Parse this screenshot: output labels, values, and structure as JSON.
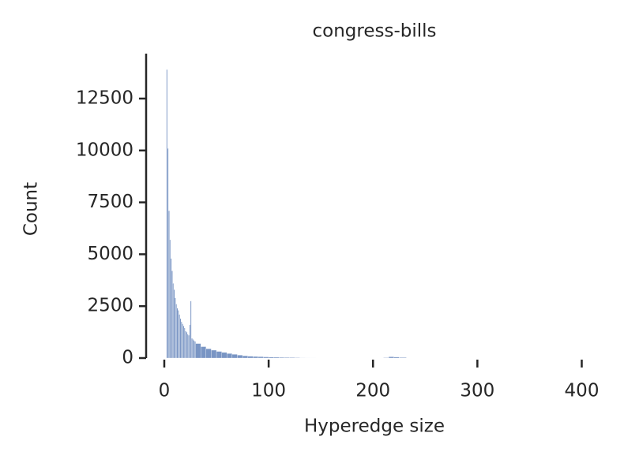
{
  "chart_data": {
    "type": "histogram",
    "title": "congress-bills",
    "x_label": "Hyperedge size",
    "y_label": "Count",
    "color": "#4c72b0",
    "bins": [
      2,
      3,
      4,
      5,
      6,
      7,
      8,
      9,
      10,
      11,
      12,
      13,
      14,
      15,
      16,
      17,
      18,
      19,
      20,
      21,
      22,
      23,
      24,
      25,
      26,
      27,
      28,
      29,
      30,
      35,
      40,
      45,
      50,
      55,
      60,
      65,
      70,
      75,
      80,
      85,
      90,
      95,
      100,
      105,
      110,
      115,
      120,
      125,
      130,
      135,
      140,
      145,
      210,
      215,
      220,
      225,
      232
    ],
    "counts": [
      13900,
      10100,
      7100,
      5700,
      4800,
      4200,
      3600,
      3300,
      2900,
      2600,
      2400,
      2300,
      2100,
      1900,
      1750,
      1650,
      1550,
      1450,
      1300,
      1250,
      1150,
      1100,
      1600,
      2750,
      950,
      900,
      850,
      800,
      700,
      550,
      450,
      380,
      320,
      270,
      220,
      180,
      140,
      110,
      90,
      75,
      65,
      55,
      45,
      40,
      35,
      30,
      25,
      20,
      15,
      12,
      8,
      0,
      20,
      60,
      50,
      30
    ],
    "xlim": [
      -17.4,
      414
    ],
    "ylim": [
      0,
      14665
    ],
    "xticks": [
      0,
      100,
      200,
      300,
      400
    ],
    "yticks": [
      0,
      2500,
      5000,
      7500,
      10000,
      12500
    ]
  }
}
